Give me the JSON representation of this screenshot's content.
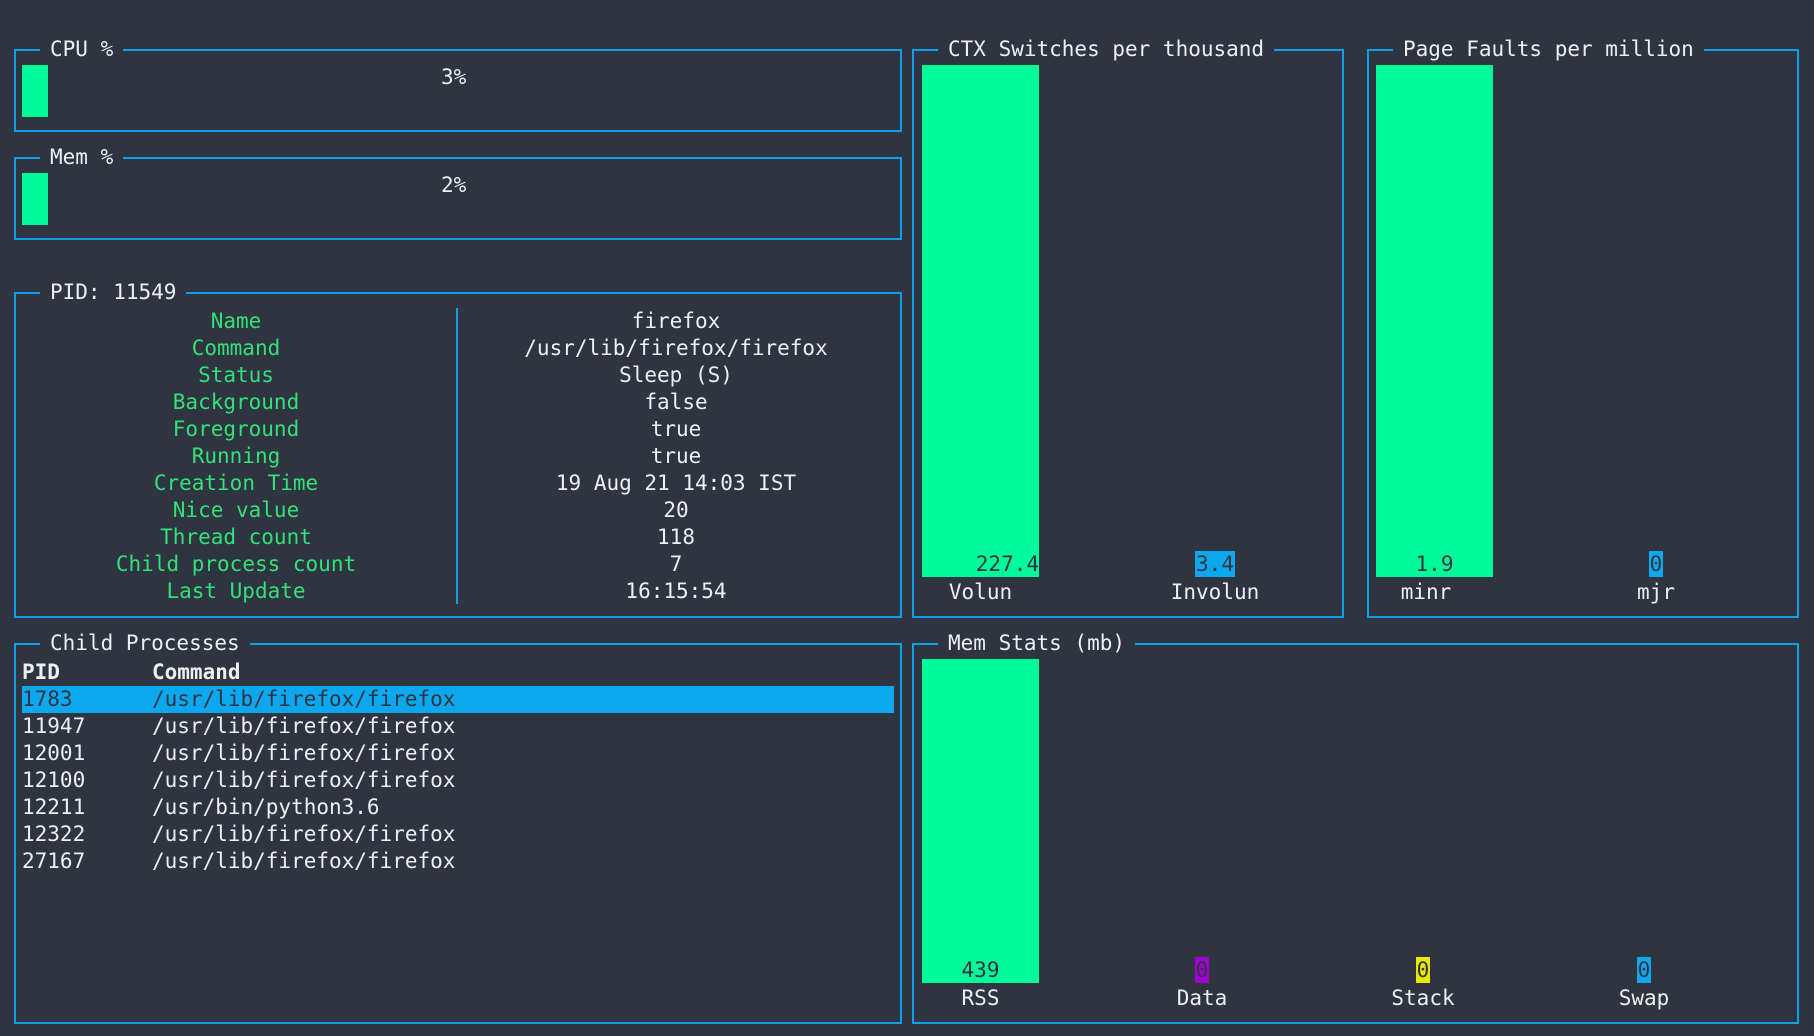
{
  "colors": {
    "background": "#2e3440",
    "border": "#0ba0e8",
    "bar": "#00fa9a",
    "key": "#33e07a",
    "selection": "#0ba8f0",
    "data_badge": "#a000d0",
    "stack_badge": "#e8e800",
    "swap_badge": "#0ba8f0"
  },
  "cpu": {
    "title": "CPU %",
    "value": "3%",
    "level": 0.03
  },
  "mem": {
    "title": "Mem %",
    "value": "2%",
    "level": 0.02
  },
  "pid_panel": {
    "title": "PID: 11549",
    "rows": [
      {
        "key": "Name",
        "value": "firefox"
      },
      {
        "key": "Command",
        "value": "/usr/lib/firefox/firefox"
      },
      {
        "key": "Status",
        "value": "Sleep (S)"
      },
      {
        "key": "Background",
        "value": "false"
      },
      {
        "key": "Foreground",
        "value": "true"
      },
      {
        "key": "Running",
        "value": "true"
      },
      {
        "key": "Creation Time",
        "value": "19 Aug 21 14:03 IST"
      },
      {
        "key": "Nice value",
        "value": "20"
      },
      {
        "key": "Thread count",
        "value": "118"
      },
      {
        "key": "Child process count",
        "value": "7"
      },
      {
        "key": "Last Update",
        "value": "16:15:54"
      }
    ]
  },
  "ctx": {
    "title": "CTX Switches per thousand",
    "bars": [
      {
        "label": "Volun",
        "value": "227.4"
      },
      {
        "label": "Involun",
        "value": "3.4"
      }
    ]
  },
  "faults": {
    "title": "Page Faults per million",
    "bars": [
      {
        "label": "minr",
        "value": "1.9"
      },
      {
        "label": "mjr",
        "value": "0"
      }
    ]
  },
  "children": {
    "title": "Child Processes",
    "header": {
      "pid": "PID",
      "command": "Command"
    },
    "rows": [
      {
        "pid": "1783",
        "command": "/usr/lib/firefox/firefox"
      },
      {
        "pid": "11947",
        "command": "/usr/lib/firefox/firefox"
      },
      {
        "pid": "12001",
        "command": "/usr/lib/firefox/firefox"
      },
      {
        "pid": "12100",
        "command": "/usr/lib/firefox/firefox"
      },
      {
        "pid": "12211",
        "command": "/usr/bin/python3.6"
      },
      {
        "pid": "12322",
        "command": "/usr/lib/firefox/firefox"
      },
      {
        "pid": "27167",
        "command": "/usr/lib/firefox/firefox"
      }
    ],
    "selected_index": 0
  },
  "memstats": {
    "title": "Mem Stats (mb)",
    "bars": [
      {
        "label": "RSS",
        "value": "439"
      },
      {
        "label": "Data",
        "value": "0"
      },
      {
        "label": "Stack",
        "value": "0"
      },
      {
        "label": "Swap",
        "value": "0"
      }
    ]
  }
}
